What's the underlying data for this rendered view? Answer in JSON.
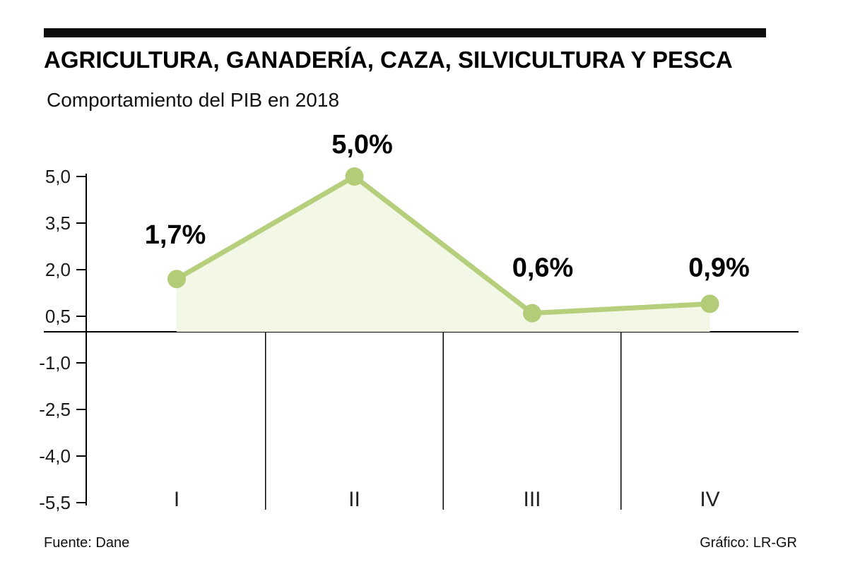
{
  "header": {
    "title": "AGRICULTURA, GANADERÍA, CAZA, SILVICULTURA Y PESCA",
    "subtitle": "Comportamiento del PIB en 2018"
  },
  "footer": {
    "source": "Fuente: Dane",
    "credit": "Gráfico: LR-GR"
  },
  "colors": {
    "line": "#b6cf7d",
    "point": "#b3cc78",
    "area_fill": "#f3f7e6",
    "axis": "#000000",
    "tick_text": "#1a1a1a"
  },
  "chart_data": {
    "type": "line",
    "title": "AGRICULTURA, GANADERÍA, CAZA, SILVICULTURA Y PESCA",
    "subtitle": "Comportamiento del PIB en 2018",
    "categories": [
      "I",
      "II",
      "III",
      "IV"
    ],
    "values": [
      1.7,
      5.0,
      0.6,
      0.9
    ],
    "point_labels": [
      "1,7%",
      "5,0%",
      "0,6%",
      "0,9%"
    ],
    "unit": "%",
    "xlabel": "",
    "ylabel": "",
    "ylim": [
      -5.5,
      5.0
    ],
    "yticks": [
      5.0,
      3.5,
      2.0,
      0.5,
      -1.0,
      -2.5,
      -4.0,
      -5.5
    ],
    "ytick_labels": [
      "5,0",
      "3,5",
      "2,0",
      "0,5",
      "-1,0",
      "-2,5",
      "-4,0",
      "-5,5"
    ],
    "grid": "vertical quarter separators below zero line only",
    "legend": "none",
    "fill_under_line": true
  }
}
